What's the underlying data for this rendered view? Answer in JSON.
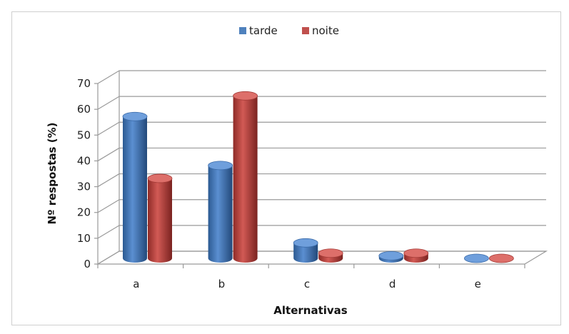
{
  "chart_data": {
    "type": "bar",
    "variant": "3d-cylinder",
    "title": "",
    "xlabel": "Alternativas",
    "ylabel": "Nº respostas (%)",
    "categories": [
      "a",
      "b",
      "c",
      "d",
      "e"
    ],
    "series": [
      {
        "name": "tarde",
        "values": [
          55,
          36,
          6,
          1,
          0
        ],
        "color": "#4f81bd"
      },
      {
        "name": "noite",
        "values": [
          31,
          63,
          2,
          2,
          0
        ],
        "color": "#c0504d"
      }
    ],
    "ylim": [
      0,
      70
    ],
    "yticks": [
      0,
      10,
      20,
      30,
      40,
      50,
      60,
      70
    ],
    "grid": true,
    "legend_position": "top"
  }
}
